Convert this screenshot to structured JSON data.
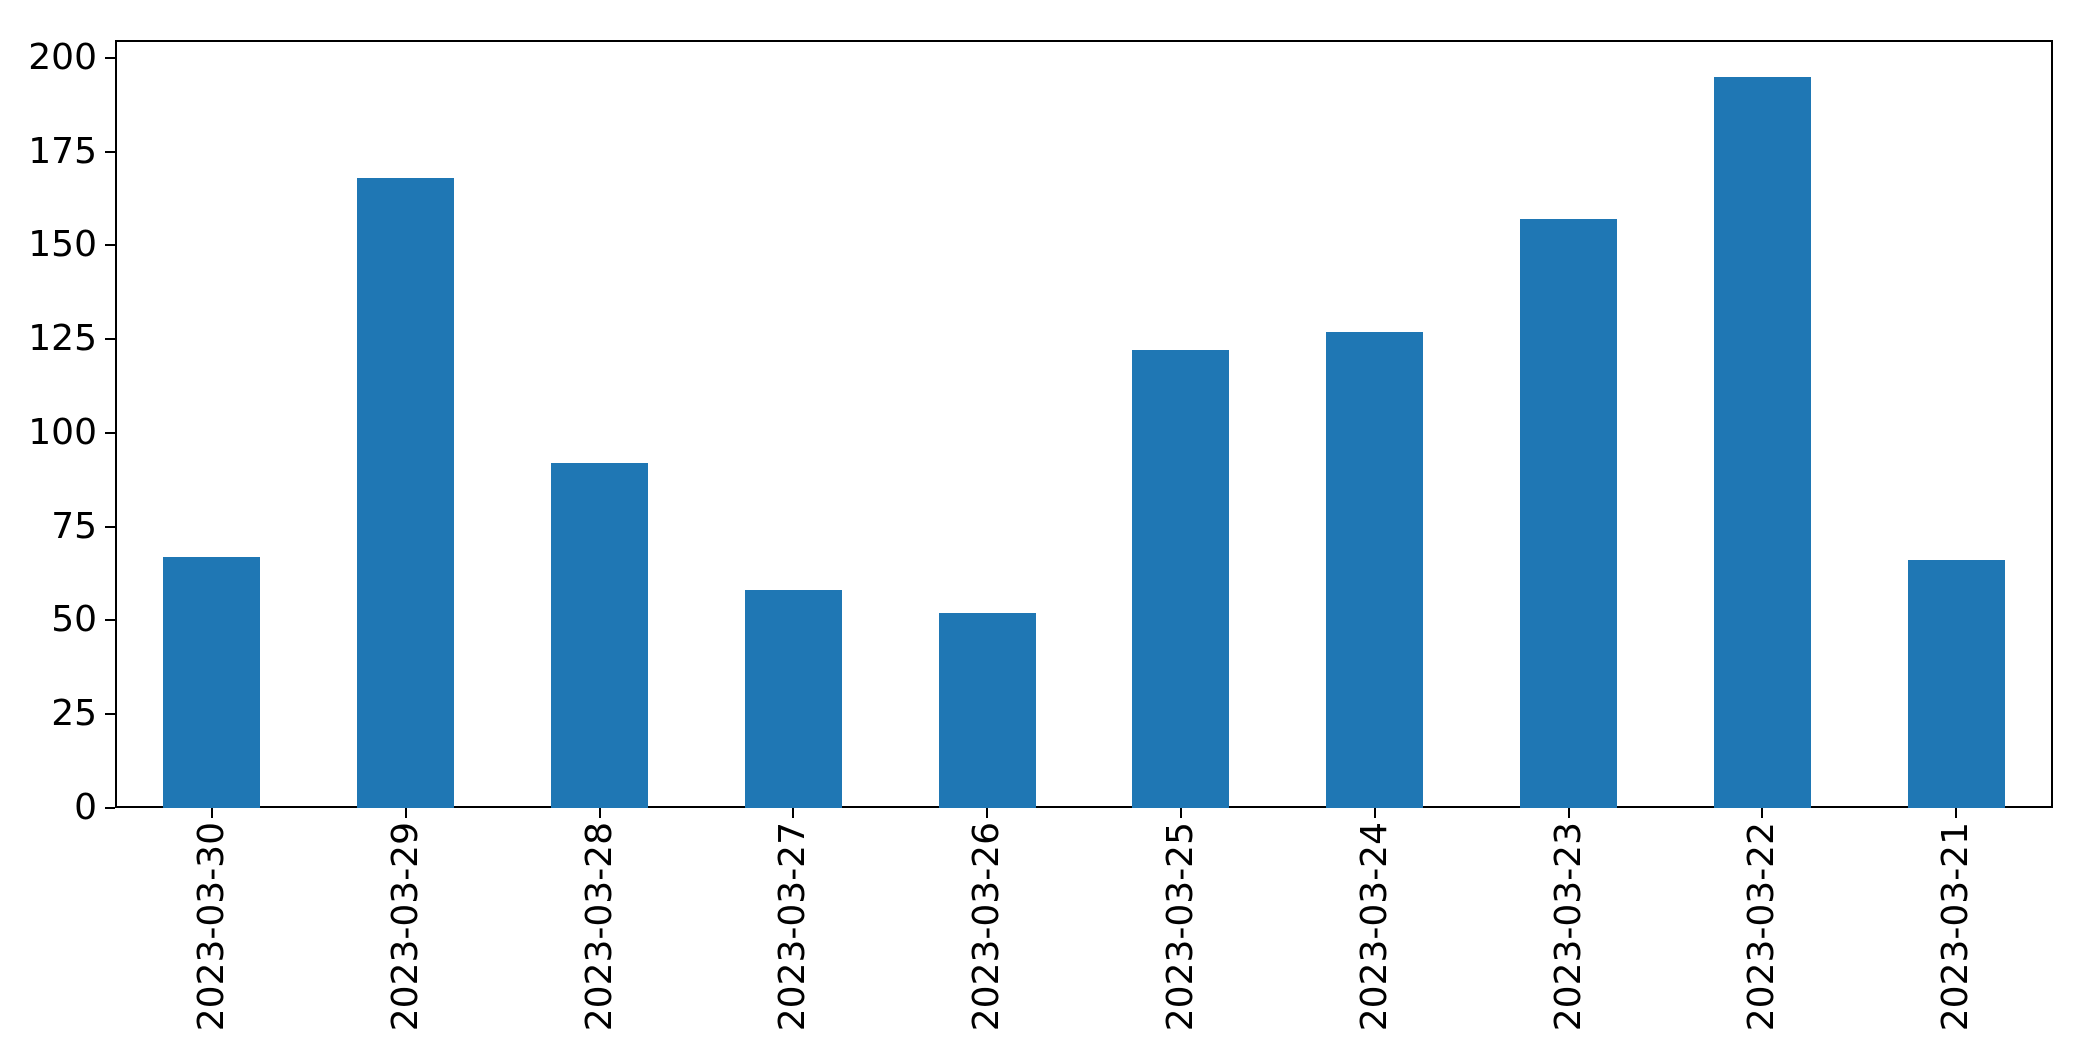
{
  "figure": {
    "background": "#ffffff",
    "axis_color": "#000000"
  },
  "chart_data": {
    "type": "bar",
    "categories": [
      "2023-03-30",
      "2023-03-29",
      "2023-03-28",
      "2023-03-27",
      "2023-03-26",
      "2023-03-25",
      "2023-03-24",
      "2023-03-23",
      "2023-03-22",
      "2023-03-21"
    ],
    "values": [
      67,
      168,
      92,
      58,
      52,
      122,
      127,
      157,
      195,
      66
    ],
    "title": "",
    "xlabel": "",
    "ylabel": "",
    "ylim": [
      0,
      204.75
    ],
    "yticks": [
      0,
      25,
      50,
      75,
      100,
      125,
      150,
      175,
      200
    ],
    "bar_color": "#1f77b4",
    "grid": false,
    "legend": null,
    "x_tick_rotation": 90
  }
}
